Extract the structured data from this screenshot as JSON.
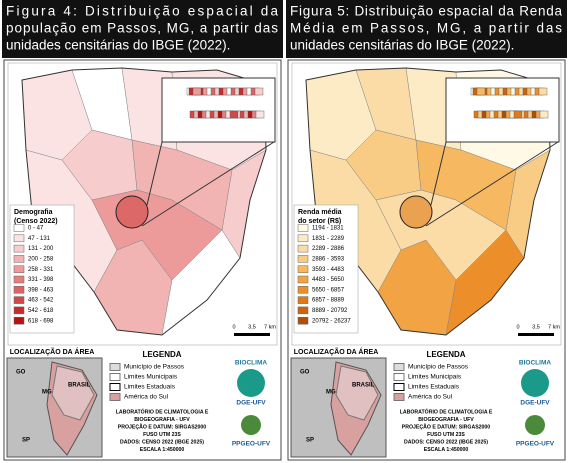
{
  "panels": [
    {
      "caption_lines": [
        "Figura 4: Distribuição espacial da",
        "população em Passos, MG, a partir das",
        "unidades censitárias do IBGE (2022)."
      ],
      "legend_title_lines": [
        "Demografia",
        "(Censo 2022)"
      ],
      "legend_items": [
        "0 - 47",
        "47 - 131",
        "131 - 200",
        "200 - 258",
        "258 - 331",
        "331 - 398",
        "398 - 463",
        "463 - 542",
        "542 - 618",
        "618 - 698"
      ],
      "legend_colors": [
        "#ffffff",
        "#fbe3e3",
        "#f7cccc",
        "#f2b3b3",
        "#ec9a9a",
        "#e47f7f",
        "#dc6464",
        "#d24848",
        "#c62c2c",
        "#b51313"
      ]
    },
    {
      "caption_lines": [
        "Figura 5: Distribuição espacial da Renda",
        "Média em Passos, MG, a partir das",
        "unidades censitárias do IBGE (2022)."
      ],
      "legend_title_lines": [
        "Renda média",
        "do setor (R$)"
      ],
      "legend_items": [
        "1194 - 1831",
        "1831 - 2289",
        "2289 - 2886",
        "2886 - 3593",
        "3593 - 4483",
        "4483 - 5650",
        "5650 - 6857",
        "6857 - 8889",
        "8889 - 20792",
        "20792 - 26237"
      ],
      "legend_colors": [
        "#fff9e6",
        "#fdebc6",
        "#fbdca6",
        "#f9cc85",
        "#f6b962",
        "#f2a445",
        "#ec8f2b",
        "#e07a17",
        "#cc6508",
        "#b04f02"
      ]
    }
  ],
  "footer": {
    "location_title": "LOCALIZAÇÃO DA ÁREA",
    "legend_title": "LEGENDA",
    "legend_entries": [
      "Município de Passos",
      "Limites Municipais",
      "Limites Estaduais",
      "América do Sul"
    ],
    "lab_lines": [
      "LABORATÓRIO DE CLIMATOLOGIA E",
      "BIOGEOGRAFIA - UFV",
      "PROJEÇÃO E DATUM: SIRGAS2000",
      "FUSO UTM 23S",
      "DADOS: CENSO 2022 (IBGE 2025)",
      "ESCALA 1:450000"
    ],
    "logo_top": [
      "BIOCLIMA",
      "DGE-UFV"
    ],
    "logo_bottom": "PPGEO-UFV",
    "map_labels": [
      "GO",
      "MG",
      "SP",
      "BRASIL"
    ],
    "scale_labels": [
      "0",
      "3,5",
      "7 km"
    ]
  }
}
